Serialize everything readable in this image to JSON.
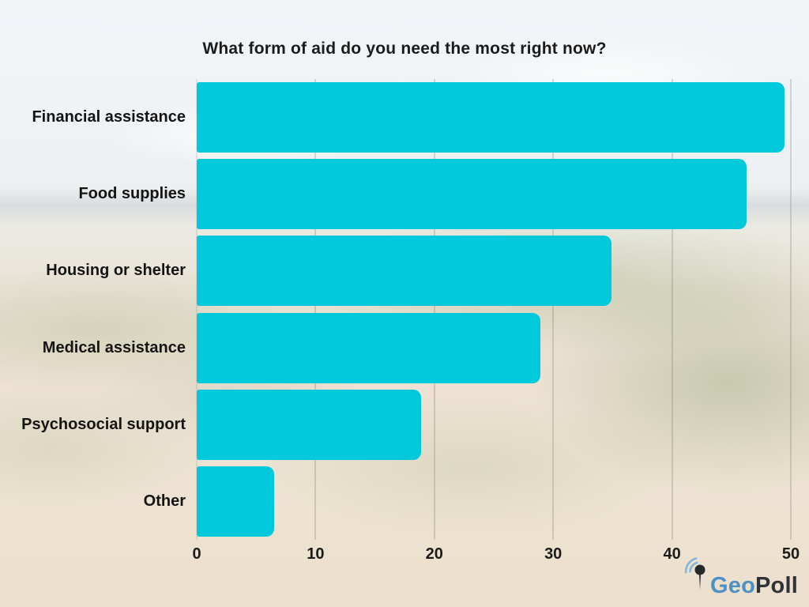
{
  "title": "What form of aid do you need the most right now?",
  "chart_data": {
    "type": "bar",
    "orientation": "horizontal",
    "title": "What form of aid do you need the most right now?",
    "categories": [
      "Financial assistance",
      "Food supplies",
      "Housing or shelter",
      "Medical assistance",
      "Psychosocial support",
      "Other"
    ],
    "values": [
      49.5,
      46.3,
      34.9,
      28.9,
      18.9,
      6.5
    ],
    "xlabel": "",
    "ylabel": "",
    "xlim": [
      0,
      50
    ],
    "xticks": [
      0,
      10,
      20,
      30,
      40,
      50
    ],
    "grid": true,
    "legend": false,
    "bar_color": "#00C9DC",
    "gridline_color": "rgba(110,110,110,0.5)",
    "text_color": "#1B1B1B"
  },
  "branding": {
    "logo_geo": "Geo",
    "logo_poll": "Poll",
    "geo_color": "#4E90C3",
    "poll_color": "#2F3337",
    "pin_color": "#26292C",
    "wave_color": "#85B5DA"
  }
}
